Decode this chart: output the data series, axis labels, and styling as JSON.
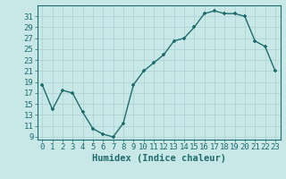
{
  "x": [
    0,
    1,
    2,
    3,
    4,
    5,
    6,
    7,
    8,
    9,
    10,
    11,
    12,
    13,
    14,
    15,
    16,
    17,
    18,
    19,
    20,
    21,
    22,
    23
  ],
  "y": [
    18.5,
    14.0,
    17.5,
    17.0,
    13.5,
    10.5,
    9.5,
    9.0,
    11.5,
    18.5,
    21.0,
    22.5,
    24.0,
    26.5,
    27.0,
    29.0,
    31.5,
    32.0,
    31.5,
    31.5,
    31.0,
    26.5,
    25.5,
    21.0
  ],
  "line_color": "#1e6b6b",
  "marker": "+",
  "bg_color": "#c8e8e8",
  "grid_color": "#aad0d0",
  "xlabel": "Humidex (Indice chaleur)",
  "xlim": [
    -0.5,
    23.5
  ],
  "ylim": [
    8.5,
    33
  ],
  "yticks": [
    9,
    11,
    13,
    15,
    17,
    19,
    21,
    23,
    25,
    27,
    29,
    31
  ],
  "xtick_labels": [
    "0",
    "1",
    "2",
    "3",
    "4",
    "5",
    "6",
    "7",
    "8",
    "9",
    "10",
    "11",
    "12",
    "13",
    "14",
    "15",
    "16",
    "17",
    "18",
    "19",
    "20",
    "21",
    "22",
    "23"
  ],
  "tick_color": "#1e6b6b",
  "font_color": "#1e6b6b",
  "font_size": 6.5,
  "xlabel_fontsize": 7.5,
  "markersize": 3.5,
  "linewidth": 1.0
}
